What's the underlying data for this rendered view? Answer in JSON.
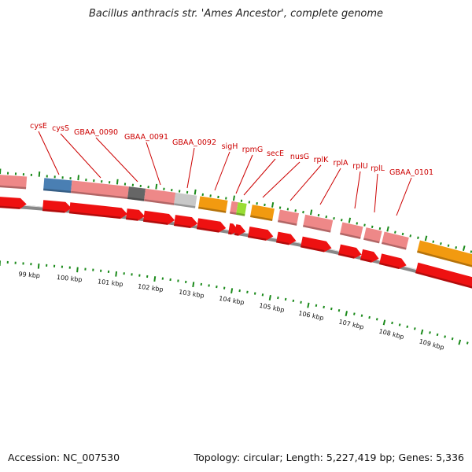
{
  "title": "Bacillus anthracis str. 'Ames Ancestor', complete genome",
  "footer": {
    "accession": "Accession: NC_007530",
    "stats": "Topology: circular; Length: 5,227,419 bp; Genes: 5,336"
  },
  "colors": {
    "red": "#ee1111",
    "salmon": "#ee8888",
    "blue": "#4a7fb3",
    "dark_gray": "#666666",
    "light_gray": "#c8c8c8",
    "orange": "#f29a10",
    "lime": "#99dd33",
    "backbone": "#888888",
    "tick": "#1a8a1a",
    "label": "#cc0000"
  },
  "axis": {
    "unit": "kbp",
    "tick_labels": [
      "99 kbp",
      "100 kbp",
      "101 kbp",
      "102 kbp",
      "103 kbp",
      "104 kbp",
      "105 kbp",
      "106 kbp",
      "107 kbp",
      "108 kbp",
      "109 kbp"
    ]
  },
  "gene_labels": [
    "cysE",
    "cysS",
    "GBAA_0090",
    "GBAA_0091",
    "GBAA_0092",
    "sigH",
    "rpmG",
    "secE",
    "nusG",
    "rplK",
    "rplA",
    "rplU",
    "rplL",
    "GBAA_0101"
  ]
}
